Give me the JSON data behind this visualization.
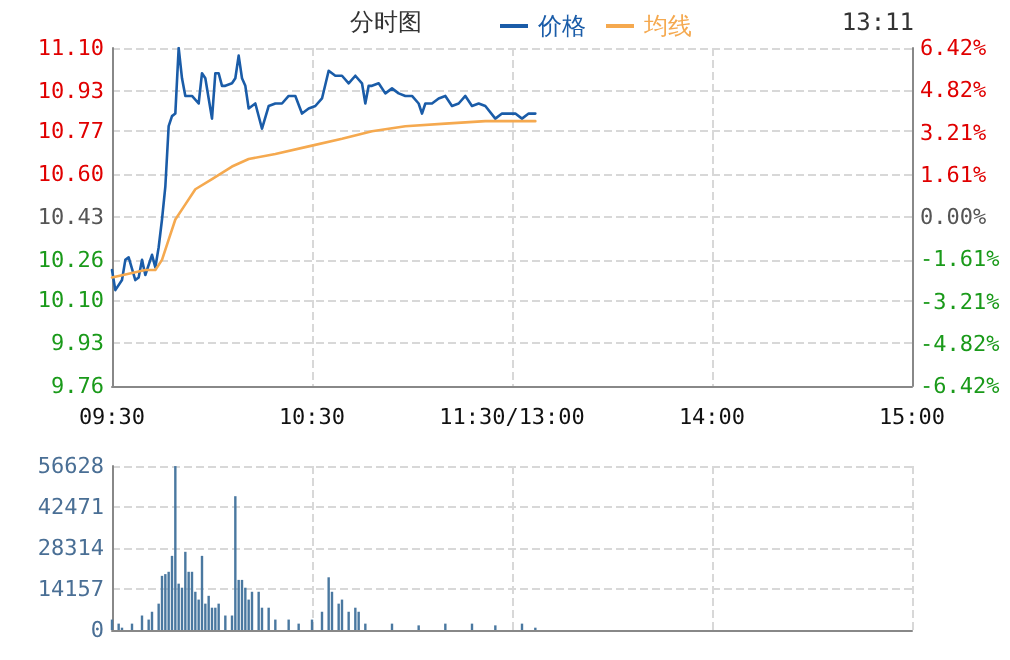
{
  "chart_data": [
    {
      "type": "line",
      "title": "分时图",
      "annotations": [
        "13:11"
      ],
      "legend": "top",
      "grid": true,
      "categories": [
        "09:30",
        null,
        null,
        null,
        null,
        null,
        null,
        null,
        null,
        null,
        null,
        null,
        null,
        null,
        null,
        null,
        null,
        null,
        null,
        null,
        null,
        null,
        null,
        null,
        null,
        null,
        null,
        null,
        null,
        null,
        null,
        null,
        null,
        null,
        null,
        null,
        null,
        null,
        null,
        null,
        null,
        null,
        null,
        null,
        null,
        null,
        null,
        null,
        null,
        null,
        null,
        null,
        null,
        null,
        null,
        null,
        null,
        null,
        null,
        null,
        "10:30",
        null,
        null,
        null,
        null,
        null,
        null,
        null,
        null,
        null,
        null,
        null,
        null,
        null,
        null,
        null,
        null,
        null,
        null,
        null,
        null,
        null,
        null,
        null,
        null,
        null,
        null,
        null,
        null,
        null,
        null,
        null,
        null,
        null,
        null,
        null,
        null,
        null,
        null,
        null,
        null,
        null,
        null,
        null,
        null,
        null,
        null,
        null,
        null,
        null,
        null,
        null,
        null,
        null,
        null,
        null,
        null,
        null,
        null,
        null,
        "11:30/13:00",
        null,
        null,
        null,
        null,
        null,
        null,
        null,
        null,
        null,
        null,
        null,
        null,
        null,
        null,
        null,
        null,
        null,
        null,
        null,
        null,
        null,
        null,
        null,
        null,
        null,
        null,
        null,
        null,
        null,
        null,
        null,
        null,
        null,
        null,
        null,
        null,
        null,
        null,
        null,
        null,
        null,
        null,
        null,
        null,
        null,
        null,
        null,
        null,
        null,
        null,
        null,
        null,
        null,
        null,
        null,
        null,
        null,
        null,
        null,
        "14:00",
        null,
        null,
        null,
        null,
        null,
        null,
        null,
        null,
        null,
        null,
        null,
        null,
        null,
        null,
        null,
        null,
        null,
        null,
        null,
        null,
        null,
        null,
        null,
        null,
        null,
        null,
        null,
        null,
        null,
        null,
        null,
        null,
        null,
        null,
        null,
        null,
        null,
        null,
        null,
        null,
        null,
        null,
        null,
        null,
        null,
        null,
        null,
        null,
        null,
        null,
        null,
        null,
        null,
        null,
        null,
        null,
        null,
        null,
        null,
        "15:00"
      ],
      "ylim": [
        9.76,
        11.1
      ],
      "yticks": [
        {
          "value": 9.76,
          "label": "9.76"
        },
        {
          "value": 9.93,
          "label": "9.93"
        },
        {
          "value": 10.1,
          "label": "10.10"
        },
        {
          "value": 10.26,
          "label": "10.26"
        },
        {
          "value": 10.43,
          "label": "10.43"
        },
        {
          "value": 10.6,
          "label": "10.60"
        },
        {
          "value": 10.77,
          "label": "10.77"
        },
        {
          "value": 10.93,
          "label": "10.93"
        },
        {
          "value": 11.1,
          "label": "11.10"
        }
      ],
      "y2lim": [
        -6.42,
        6.42
      ],
      "y2ticks": [
        {
          "value": -6.42,
          "label": "-6.42%"
        },
        {
          "value": -4.82,
          "label": "-4.82%"
        },
        {
          "value": -3.21,
          "label": "-3.21%"
        },
        {
          "value": -1.61,
          "label": "-1.61%"
        },
        {
          "value": 0,
          "label": "0.00%"
        },
        {
          "value": 1.61,
          "label": "1.61%"
        },
        {
          "value": 3.21,
          "label": "3.21%"
        },
        {
          "value": 4.82,
          "label": "4.82%"
        },
        {
          "value": 6.42,
          "label": "6.42%"
        }
      ],
      "marker": "none",
      "line_style": "solid",
      "series": [
        {
          "name": "价格",
          "color": "#1a5ca8",
          "values": [
            10.22,
            10.14,
            null,
            10.18,
            10.26,
            10.27,
            null,
            10.18,
            10.19,
            10.26,
            10.2,
            null,
            10.28,
            10.23,
            10.31,
            10.42,
            10.55,
            10.79,
            10.83,
            10.84,
            11.1,
            10.98,
            10.91,
            null,
            10.91,
            null,
            10.88,
            11.0,
            10.98,
            10.9,
            10.82,
            11.0,
            11.0,
            10.95,
            10.95,
            null,
            10.96,
            10.98,
            11.07,
            10.98,
            10.95,
            10.86,
            null,
            10.88,
            null,
            10.78,
            null,
            10.87,
            null,
            10.88,
            null,
            10.88,
            null,
            10.91,
            null,
            10.91,
            null,
            10.84,
            null,
            10.86,
            null,
            10.87,
            null,
            10.9,
            null,
            11.01,
            null,
            10.99,
            null,
            10.99,
            null,
            10.96,
            null,
            10.99,
            null,
            10.96,
            10.88,
            10.95,
            10.95,
            null,
            10.96,
            null,
            10.92,
            null,
            10.94,
            null,
            10.92,
            null,
            10.91,
            null,
            10.91,
            null,
            10.88,
            10.84,
            10.88,
            null,
            10.88,
            null,
            10.9,
            null,
            10.91,
            null,
            10.87,
            null,
            10.88,
            null,
            10.91,
            null,
            10.87,
            null,
            10.88,
            null,
            10.87,
            null,
            null,
            10.82,
            null,
            10.84,
            null,
            null,
            null,
            10.84,
            null,
            10.82,
            null,
            10.84,
            null,
            10.84,
            null,
            null,
            null,
            null,
            null,
            null,
            null,
            null,
            null,
            null,
            null,
            null,
            null,
            null,
            null,
            null,
            null,
            null,
            null,
            null,
            null,
            null,
            null,
            null,
            null,
            null,
            null,
            null,
            null,
            null,
            null,
            null,
            null,
            null,
            null,
            null,
            null,
            null,
            null,
            null,
            null,
            null,
            null,
            null,
            null,
            null,
            null,
            null,
            null,
            null,
            null,
            null,
            null,
            null,
            null,
            null,
            null,
            null,
            null,
            null,
            null,
            null,
            null,
            null,
            null,
            null,
            null,
            null,
            null,
            null,
            null,
            null,
            null,
            null,
            null,
            null,
            null,
            null,
            null,
            null,
            null,
            null,
            null,
            null,
            null,
            null,
            null,
            null,
            null,
            null,
            null,
            null,
            null,
            null,
            null,
            null,
            null,
            null,
            null,
            null,
            null,
            null,
            null,
            null,
            null,
            null,
            null,
            null,
            null,
            null,
            null,
            null,
            null
          ]
        },
        {
          "name": "均线",
          "color": "#f5a94f",
          "values": [
            10.19,
            null,
            null,
            null,
            null,
            null,
            null,
            null,
            null,
            null,
            10.22,
            null,
            null,
            10.22,
            null,
            10.26,
            null,
            10.34,
            null,
            10.42,
            null,
            null,
            10.48,
            null,
            null,
            10.54,
            null,
            null,
            null,
            null,
            10.58,
            null,
            null,
            null,
            null,
            null,
            10.63,
            null,
            null,
            null,
            null,
            10.66,
            null,
            null,
            null,
            null,
            null,
            null,
            null,
            10.68,
            null,
            null,
            null,
            null,
            null,
            null,
            null,
            null,
            null,
            10.71,
            null,
            null,
            null,
            null,
            null,
            null,
            null,
            null,
            null,
            10.74,
            null,
            null,
            null,
            null,
            null,
            null,
            null,
            null,
            10.77,
            null,
            null,
            null,
            null,
            null,
            null,
            null,
            null,
            null,
            10.79,
            null,
            null,
            null,
            null,
            null,
            null,
            null,
            null,
            null,
            null,
            null,
            10.8,
            null,
            null,
            null,
            null,
            null,
            null,
            null,
            null,
            null,
            null,
            null,
            10.81,
            null,
            null,
            null,
            null,
            null,
            null,
            null,
            null,
            null,
            null,
            null,
            null,
            null,
            null,
            10.81,
            null,
            null,
            null,
            null,
            null,
            null,
            null,
            null,
            null,
            null,
            null,
            null,
            null,
            null,
            null,
            null,
            null,
            null,
            null,
            null,
            null,
            null,
            null,
            null,
            null,
            null,
            null,
            null,
            null,
            null,
            null,
            null,
            null,
            null,
            null,
            null,
            null,
            null,
            null,
            null,
            null,
            null,
            null,
            null,
            null,
            null,
            null,
            null,
            null,
            null,
            null,
            null,
            null,
            null,
            null,
            null,
            null,
            null,
            null,
            null,
            null,
            null,
            null,
            null,
            null,
            null,
            null,
            null,
            null,
            null,
            null,
            null,
            null,
            null,
            null,
            null,
            null,
            null,
            null,
            null,
            null,
            null,
            null,
            null,
            null,
            null,
            null,
            null,
            null,
            null,
            null,
            null,
            null,
            null,
            null,
            null,
            null,
            null,
            null,
            null,
            null,
            null,
            null,
            null,
            null,
            null,
            null,
            null,
            null,
            null,
            null,
            null,
            null
          ]
        }
      ]
    },
    {
      "type": "bar",
      "grid": true,
      "tick_labels": "y",
      "categories": [
        null,
        null,
        null,
        null,
        null,
        null,
        null,
        null,
        null,
        null,
        null,
        null,
        null,
        null,
        null,
        null,
        null,
        null,
        null,
        null,
        null,
        null,
        null,
        null,
        null,
        null,
        null,
        null,
        null,
        null,
        null,
        null,
        null,
        null,
        null,
        null,
        null,
        null,
        null,
        null,
        null,
        null,
        null,
        null,
        null,
        null,
        null,
        null,
        null,
        null,
        null,
        null,
        null,
        null,
        null,
        null,
        null,
        null,
        null,
        null,
        null,
        null,
        null,
        null,
        null,
        null,
        null,
        null,
        null,
        null,
        null,
        null,
        null,
        null,
        null,
        null,
        null,
        null,
        null,
        null,
        null,
        null,
        null,
        null,
        null,
        null,
        null,
        null,
        null,
        null,
        null,
        null,
        null,
        null,
        null,
        null,
        null,
        null,
        null,
        null,
        null,
        null,
        null,
        null,
        null,
        null,
        null,
        null,
        null,
        null,
        null,
        null,
        null,
        null,
        null,
        null,
        null,
        null,
        null,
        null,
        null,
        null,
        null,
        null,
        null,
        null,
        null,
        null,
        null,
        null,
        null,
        null,
        null,
        null,
        null,
        null,
        null,
        null,
        null,
        null,
        null,
        null,
        null,
        null,
        null,
        null,
        null,
        null,
        null,
        null,
        null,
        null,
        null,
        null,
        null,
        null,
        null,
        null,
        null,
        null,
        null,
        null,
        null,
        null,
        null,
        null,
        null,
        null,
        null,
        null,
        null,
        null,
        null,
        null,
        null,
        null,
        null,
        null,
        null,
        null,
        null,
        null,
        null,
        null,
        null,
        null,
        null,
        null,
        null,
        null,
        null,
        null,
        null,
        null,
        null,
        null,
        null,
        null,
        null,
        null,
        null,
        null,
        null,
        null,
        null,
        null,
        null,
        null,
        null,
        null,
        null,
        null,
        null,
        null,
        null,
        null,
        null,
        null,
        null,
        null,
        null,
        null,
        null,
        null,
        null,
        null,
        null,
        null,
        null,
        null,
        null,
        null,
        null,
        null,
        null,
        null,
        null,
        null,
        null,
        null,
        null
      ],
      "ylim": [
        0,
        56628
      ],
      "yticks": [
        0,
        14157,
        28314,
        42471,
        56628
      ],
      "color": "#4a78a0",
      "values": [
        3600,
        null,
        2200,
        800,
        null,
        null,
        2200,
        null,
        null,
        5000,
        null,
        3600,
        6300,
        null,
        9100,
        18700,
        19300,
        20100,
        25600,
        56600,
        16000,
        14600,
        27000,
        20100,
        20100,
        13200,
        10500,
        25600,
        9100,
        11800,
        7700,
        7700,
        9100,
        null,
        5000,
        null,
        5000,
        46200,
        17300,
        17300,
        14600,
        10500,
        13200,
        null,
        13200,
        7700,
        null,
        7700,
        null,
        3600,
        null,
        null,
        null,
        3600,
        null,
        null,
        2200,
        null,
        null,
        null,
        3600,
        null,
        null,
        6300,
        null,
        18200,
        13200,
        null,
        9100,
        10500,
        null,
        6300,
        null,
        7700,
        6300,
        null,
        2200,
        null,
        null,
        null,
        null,
        null,
        null,
        null,
        2200,
        null,
        null,
        null,
        null,
        null,
        null,
        null,
        1600,
        null,
        null,
        null,
        null,
        null,
        null,
        null,
        2200,
        null,
        null,
        null,
        null,
        null,
        null,
        null,
        2200,
        null,
        null,
        null,
        null,
        null,
        null,
        1600,
        null,
        null,
        null,
        null,
        null,
        null,
        null,
        2200,
        null,
        null,
        null,
        800,
        null,
        null,
        null,
        null,
        null,
        null,
        null,
        null,
        null,
        null,
        null,
        null,
        null,
        null,
        null,
        null,
        null,
        null,
        null,
        null,
        null,
        null,
        null,
        null,
        null,
        null,
        null,
        null,
        null,
        null,
        null,
        null,
        null,
        null,
        null,
        null,
        null,
        null,
        null,
        null,
        null,
        null,
        null,
        null,
        null,
        null,
        null,
        null,
        null,
        null,
        null,
        null,
        null,
        null,
        null,
        null,
        null,
        null,
        null,
        null,
        null,
        null,
        null,
        null,
        null,
        null,
        null,
        null,
        null,
        null,
        null,
        null,
        null,
        null,
        null,
        null,
        null,
        null,
        null,
        null,
        null,
        null,
        null,
        null,
        null,
        null,
        null,
        null,
        null,
        null,
        null,
        null,
        null,
        null,
        null,
        null,
        null,
        null,
        null,
        null,
        null,
        null,
        null,
        null,
        null,
        null,
        null,
        null,
        null,
        null,
        null,
        null,
        null
      ]
    }
  ]
}
